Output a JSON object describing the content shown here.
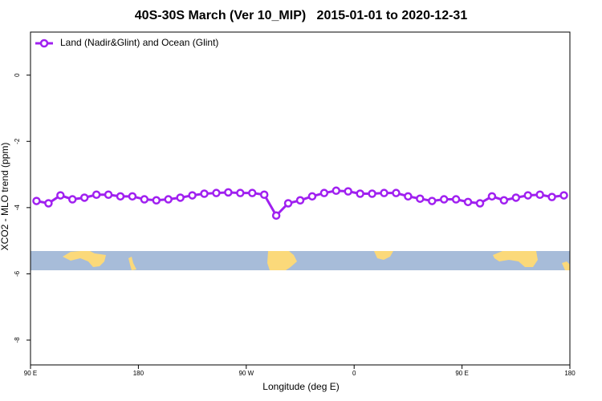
{
  "chart_data": {
    "type": "line",
    "title": "40S-30S March (Ver 10_MIP)   2015-01-01 to 2020-12-31",
    "x_label": "Longitude (deg E)",
    "y_label": "XCO2 - MLO trend (ppm)",
    "x": [
      95,
      105,
      115,
      125,
      135,
      145,
      155,
      165,
      175,
      185,
      195,
      205,
      215,
      225,
      235,
      245,
      255,
      265,
      275,
      285,
      295,
      305,
      315,
      325,
      335,
      345,
      355,
      365,
      375,
      385,
      395,
      405,
      415,
      425,
      435,
      445,
      455,
      465,
      475,
      485,
      495,
      505,
      515,
      525,
      535
    ],
    "series": [
      {
        "name": "Land (Nadir&Glint) and Ocean (Glint)",
        "color": "#a020f0",
        "values": [
          -3.8,
          -3.87,
          -3.63,
          -3.75,
          -3.7,
          -3.61,
          -3.61,
          -3.66,
          -3.66,
          -3.75,
          -3.78,
          -3.75,
          -3.7,
          -3.63,
          -3.58,
          -3.56,
          -3.54,
          -3.56,
          -3.56,
          -3.61,
          -4.24,
          -3.87,
          -3.78,
          -3.66,
          -3.56,
          -3.49,
          -3.51,
          -3.58,
          -3.58,
          -3.56,
          -3.56,
          -3.66,
          -3.73,
          -3.8,
          -3.75,
          -3.75,
          -3.83,
          -3.87,
          -3.66,
          -3.78,
          -3.7,
          -3.63,
          -3.61,
          -3.68,
          -3.63
        ]
      }
    ],
    "xlim": [
      90,
      540
    ],
    "xticks": [
      {
        "value": 90,
        "label": "90 E"
      },
      {
        "value": 180,
        "label": "180"
      },
      {
        "value": 270,
        "label": "90 W"
      },
      {
        "value": 360,
        "label": "0"
      },
      {
        "value": 450,
        "label": "90 E"
      },
      {
        "value": 540,
        "label": "180"
      }
    ],
    "ylim": [
      -8.75,
      1.3
    ],
    "yticks": [
      0,
      -2,
      -4,
      -6,
      -8
    ],
    "legend": "top-left"
  }
}
